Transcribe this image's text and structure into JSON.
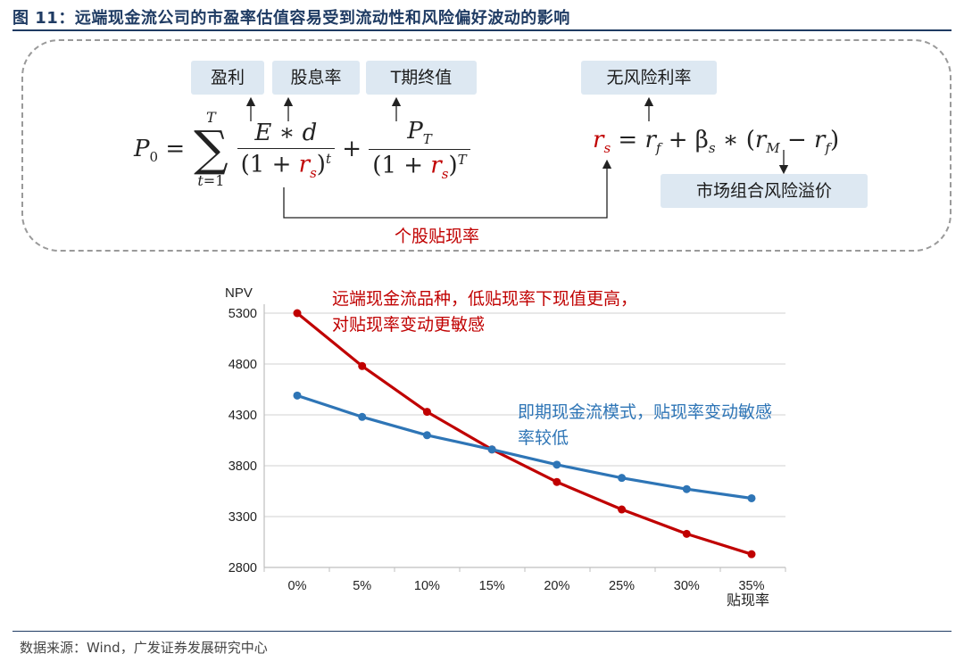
{
  "figure": {
    "title": "图 11：远端现金流公司的市盈率估值容易受到流动性和风险偏好波动的影响",
    "source": "数据来源：Wind，广发证券发展研究中心"
  },
  "formula": {
    "tags": {
      "earnings": "盈利",
      "dividend_rate": "股息率",
      "terminal_value": "T期终值",
      "risk_free": "无风险利率",
      "market_premium": "市场组合风险溢价"
    },
    "connector_label": "个股贴现率"
  },
  "annotations": {
    "red_note_line1": "远端现金流品种，低贴现率下现值更高，",
    "red_note_line2": "对贴现率变动更敏感",
    "blue_note_line1": "即期现金流模式，贴现率变动敏感",
    "blue_note_line2": "率较低"
  },
  "colors": {
    "title": "#1f3b63",
    "tag_bg": "#dde8f2",
    "red_series": "#c00000",
    "blue_series": "#2e75b6",
    "grid": "#d9d9d9"
  },
  "chart_data": {
    "type": "line",
    "ylabel": "NPV",
    "xlabel": "贴现率",
    "categories": [
      "0%",
      "5%",
      "10%",
      "15%",
      "20%",
      "25%",
      "30%",
      "35%"
    ],
    "ylim": [
      2800,
      5300
    ],
    "yticks": [
      2800,
      3300,
      3800,
      4300,
      4800,
      5300
    ],
    "grid": true,
    "series": [
      {
        "name": "远端现金流品种",
        "color": "#c00000",
        "values": [
          5300,
          4780,
          4330,
          3960,
          3640,
          3370,
          3130,
          2930
        ]
      },
      {
        "name": "即期现金流模式",
        "color": "#2e75b6",
        "values": [
          4490,
          4280,
          4100,
          3960,
          3810,
          3680,
          3570,
          3480
        ]
      }
    ]
  }
}
